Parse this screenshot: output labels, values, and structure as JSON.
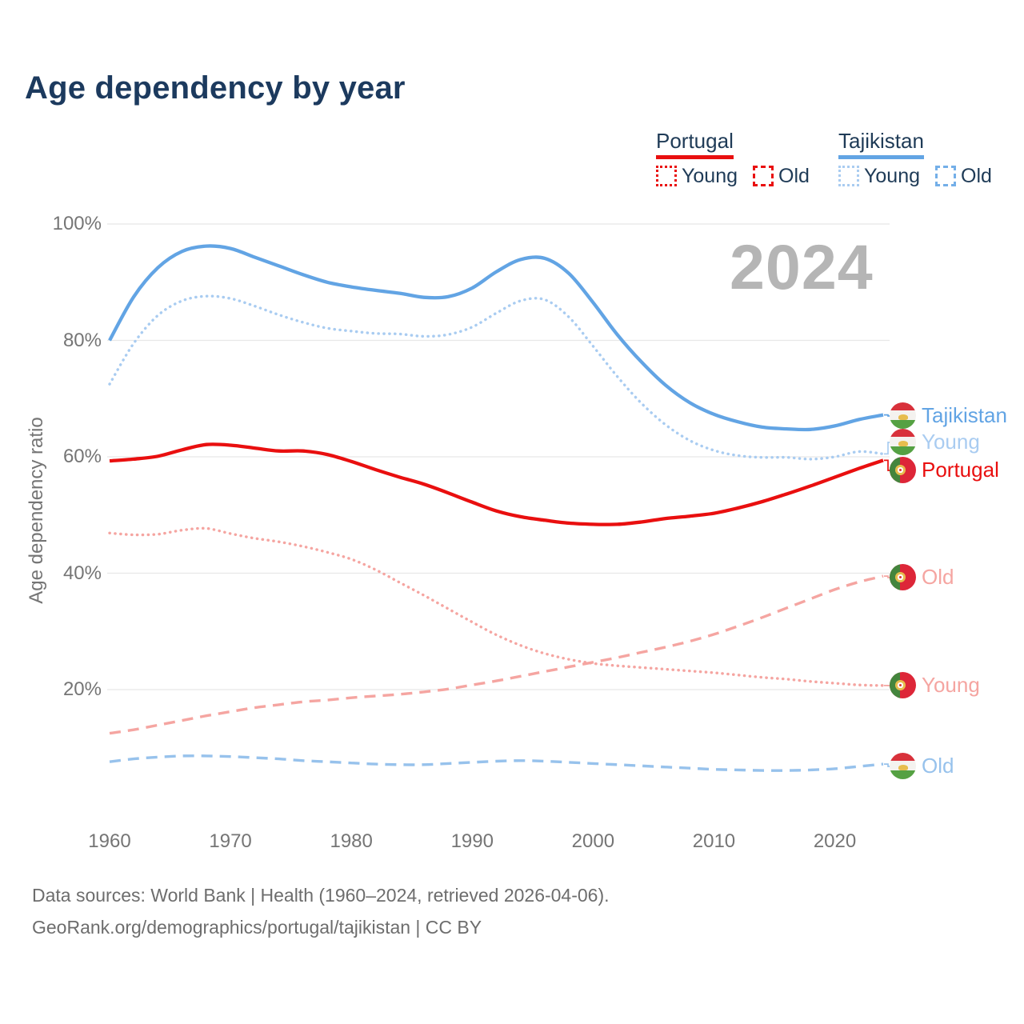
{
  "title": "Age dependency by year",
  "watermark": "2024",
  "legend": {
    "groups": [
      {
        "country": "Portugal",
        "color": "#e90f0f",
        "items": [
          {
            "label": "Young",
            "line_style": "dotted",
            "color": "#e90f0f"
          },
          {
            "label": "Old",
            "line_style": "dashed",
            "color": "#e90f0f"
          }
        ]
      },
      {
        "country": "Tajikistan",
        "color": "#62a4e4",
        "items": [
          {
            "label": "Young",
            "line_style": "dotted",
            "color": "#a9ccf1"
          },
          {
            "label": "Old",
            "line_style": "dashed",
            "color": "#74afe8"
          }
        ]
      }
    ]
  },
  "end_labels": [
    {
      "text": "Tajikistan",
      "series": "tj_total",
      "flag": "tajikistan",
      "color": "#62a4e4"
    },
    {
      "text": "Young",
      "series": "tj_young",
      "flag": "tajikistan",
      "color": "#a9ccf1"
    },
    {
      "text": "Portugal",
      "series": "pt_total",
      "flag": "portugal",
      "color": "#e90f0f"
    },
    {
      "text": "Old",
      "series": "pt_old",
      "flag": "portugal",
      "color": "#f5a5a1"
    },
    {
      "text": "Young",
      "series": "pt_young",
      "flag": "portugal",
      "color": "#f5a5a1"
    },
    {
      "text": "Old",
      "series": "tj_old",
      "flag": "tajikistan",
      "color": "#97c2ec"
    }
  ],
  "footer": {
    "line1": "Data sources: World Bank | Health (1960–2024, retrieved 2026-04-06).",
    "line2": "GeoRank.org/demographics/portugal/tajikistan | CC BY"
  },
  "chart_data": {
    "type": "line",
    "title": "Age dependency by year",
    "xlabel": "",
    "ylabel": "Age dependency ratio",
    "x_range": [
      1960,
      2024
    ],
    "y_range_shown": [
      20,
      100
    ],
    "grid": true,
    "x_ticks": [
      1960,
      1970,
      1980,
      1990,
      2000,
      2010,
      2020
    ],
    "y_ticks": [
      {
        "label": "100%",
        "value": 100
      },
      {
        "label": "80%",
        "value": 80
      },
      {
        "label": "60%",
        "value": 60
      },
      {
        "label": "40%",
        "value": 40
      },
      {
        "label": "20%",
        "value": 20
      }
    ],
    "x_years": [
      1960,
      1962,
      1964,
      1966,
      1968,
      1970,
      1972,
      1974,
      1976,
      1978,
      1980,
      1982,
      1984,
      1986,
      1988,
      1990,
      1992,
      1994,
      1996,
      1998,
      2000,
      2002,
      2004,
      2006,
      2008,
      2010,
      2012,
      2014,
      2016,
      2018,
      2020,
      2022,
      2024
    ],
    "series": [
      {
        "id": "tj_total",
        "name": "Tajikistan (total)",
        "country": "Tajikistan",
        "component": "Total",
        "line_style": "solid",
        "color": "#62a4e4",
        "values": [
          80,
          87.5,
          92.5,
          95.3,
          96.2,
          95.8,
          94.3,
          92.8,
          91.3,
          90,
          89.2,
          88.6,
          88.1,
          87.4,
          87.5,
          89,
          91.8,
          93.9,
          94.1,
          91.5,
          86.5,
          81,
          76.3,
          72.3,
          69.3,
          67.3,
          66,
          65.1,
          64.8,
          64.7,
          65.3,
          66.4,
          67.2
        ]
      },
      {
        "id": "tj_young",
        "name": "Tajikistan Young",
        "country": "Tajikistan",
        "component": "Young",
        "line_style": "dotted",
        "color": "#a9ccf1",
        "values": [
          72.5,
          79.5,
          84.3,
          86.8,
          87.6,
          87.2,
          85.9,
          84.4,
          83.1,
          82.1,
          81.6,
          81.2,
          81.1,
          80.7,
          81,
          82.3,
          84.7,
          86.8,
          87,
          84,
          79,
          73.8,
          69.2,
          65.5,
          62.8,
          61.1,
          60.2,
          59.9,
          59.9,
          59.6,
          60,
          60.9,
          60.5
        ]
      },
      {
        "id": "pt_total",
        "name": "Portugal (total)",
        "country": "Portugal",
        "component": "Total",
        "line_style": "solid",
        "color": "#e90f0f",
        "values": [
          59.3,
          59.6,
          60.1,
          61.2,
          62.1,
          62,
          61.5,
          61,
          61,
          60.4,
          59.2,
          57.8,
          56.5,
          55.3,
          53.8,
          52.2,
          50.7,
          49.7,
          49.1,
          48.6,
          48.4,
          48.4,
          48.8,
          49.4,
          49.8,
          50.3,
          51.2,
          52.3,
          53.6,
          55,
          56.5,
          58,
          59.4
        ]
      },
      {
        "id": "pt_young",
        "name": "Portugal Young",
        "country": "Portugal",
        "component": "Young",
        "line_style": "dotted",
        "color": "#f5a5a1",
        "values": [
          46.9,
          46.6,
          46.7,
          47.4,
          47.7,
          46.8,
          46,
          45.4,
          44.6,
          43.6,
          42.4,
          40.6,
          38.4,
          36.2,
          33.9,
          31.6,
          29.4,
          27.6,
          26.2,
          25.2,
          24.5,
          24.1,
          23.8,
          23.5,
          23.2,
          22.9,
          22.5,
          22.1,
          21.8,
          21.4,
          21.1,
          20.8,
          20.7
        ]
      },
      {
        "id": "pt_old",
        "name": "Portugal Old",
        "country": "Portugal",
        "component": "Old",
        "line_style": "dashed",
        "color": "#f5a5a1",
        "values": [
          12.5,
          13.1,
          13.9,
          14.7,
          15.5,
          16.2,
          16.9,
          17.4,
          17.9,
          18.2,
          18.6,
          18.9,
          19.2,
          19.6,
          20.1,
          20.8,
          21.5,
          22.3,
          23.1,
          23.9,
          24.7,
          25.5,
          26.4,
          27.3,
          28.3,
          29.5,
          30.9,
          32.4,
          34,
          35.6,
          37.2,
          38.5,
          39.5
        ]
      },
      {
        "id": "tj_old",
        "name": "Tajikistan Old",
        "country": "Tajikistan",
        "component": "Old",
        "line_style": "dashed",
        "color": "#97c2ec",
        "values": [
          7.6,
          8.1,
          8.4,
          8.6,
          8.6,
          8.5,
          8.3,
          8.1,
          7.8,
          7.6,
          7.4,
          7.2,
          7.1,
          7.1,
          7.3,
          7.5,
          7.7,
          7.8,
          7.7,
          7.5,
          7.3,
          7.1,
          6.9,
          6.7,
          6.5,
          6.3,
          6.2,
          6.1,
          6.1,
          6.2,
          6.4,
          6.8,
          7.2
        ]
      }
    ]
  }
}
